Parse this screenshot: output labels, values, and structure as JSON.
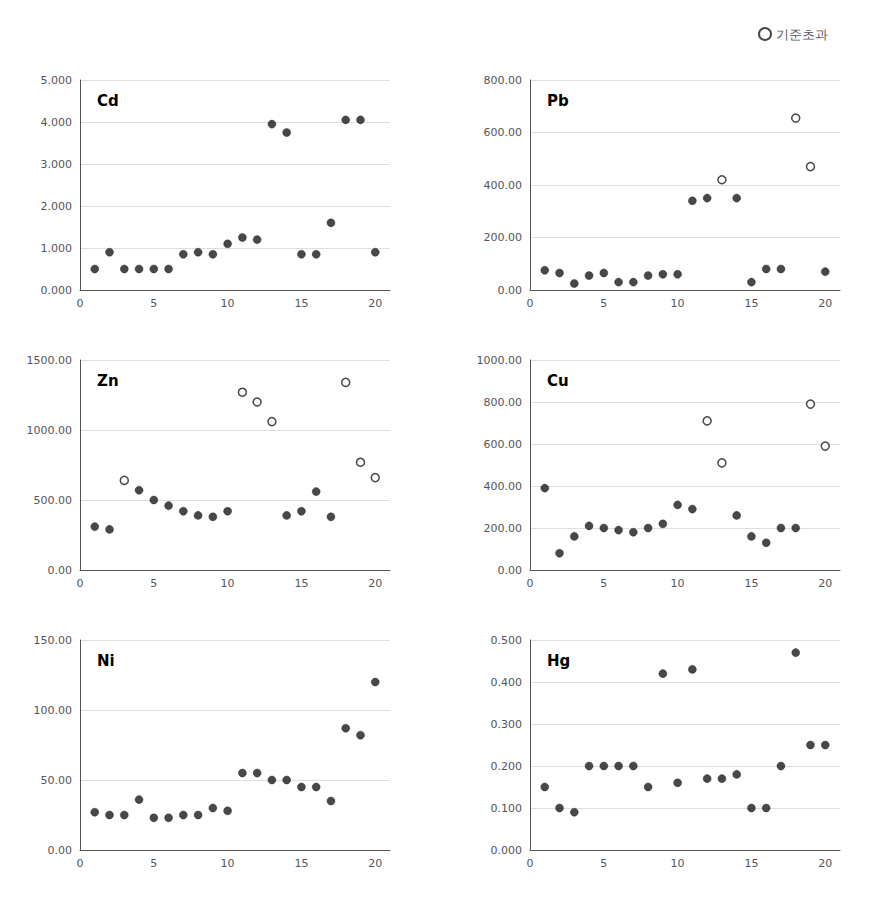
{
  "chart_data": [
    {
      "type": "scatter",
      "title": "Cd",
      "x": [
        1,
        2,
        3,
        4,
        5,
        6,
        7,
        8,
        9,
        10,
        11,
        12,
        13,
        14,
        15,
        16,
        17,
        18,
        19,
        20
      ],
      "series": [
        {
          "color": "#1a1a1a",
          "marker": "circle",
          "values": [
            0.5,
            0.9,
            0.5,
            0.5,
            0.5,
            0.5,
            0.85,
            0.9,
            0.85,
            1.1,
            1.25,
            1.2,
            3.95,
            3.75,
            0.85,
            0.85,
            1.6,
            4.05,
            4.05,
            0.9
          ]
        }
      ],
      "xlim": [
        0,
        21
      ],
      "xticks": [
        0,
        5,
        10,
        15,
        20
      ],
      "ylim": [
        0,
        5.0
      ],
      "yticks": [
        {
          "value": 0.0,
          "label": "0.000"
        },
        {
          "value": 1.0,
          "label": "1.000"
        },
        {
          "value": 2.0,
          "label": "2.000"
        },
        {
          "value": 3.0,
          "label": "3.000"
        },
        {
          "value": 4.0,
          "label": "4.000"
        },
        {
          "value": 5.0,
          "label": "5.000"
        }
      ],
      "grid": true
    },
    {
      "type": "scatter",
      "title": "Pb",
      "x": [
        1,
        2,
        3,
        4,
        5,
        6,
        7,
        8,
        9,
        10,
        11,
        12,
        13,
        14,
        15,
        16,
        17,
        18,
        19,
        20
      ],
      "series": [
        {
          "color": "#1a1a1a",
          "marker": "circle",
          "values": [
            75,
            65,
            25,
            55,
            65,
            30,
            30,
            55,
            60,
            60,
            340,
            350,
            null,
            350,
            30,
            80,
            80,
            null,
            null,
            70
          ]
        },
        {
          "name": "기준초과",
          "color": "#1a1a1a",
          "marker": "open_circle",
          "values": [
            null,
            null,
            null,
            null,
            null,
            null,
            null,
            null,
            null,
            null,
            null,
            null,
            420,
            null,
            null,
            null,
            null,
            655,
            470,
            null
          ]
        }
      ],
      "xlim": [
        0,
        21
      ],
      "xticks": [
        0,
        5,
        10,
        15,
        20
      ],
      "ylim": [
        0,
        800
      ],
      "yticks": [
        {
          "value": 0.0,
          "label": "0.00"
        },
        {
          "value": 200.0,
          "label": "200.00"
        },
        {
          "value": 400.0,
          "label": "400.00"
        },
        {
          "value": 600.0,
          "label": "600.00"
        },
        {
          "value": 800.0,
          "label": "800.00"
        }
      ],
      "grid": true,
      "legend": "upper right"
    },
    {
      "type": "scatter",
      "title": "Zn",
      "x": [
        1,
        2,
        3,
        4,
        5,
        6,
        7,
        8,
        9,
        10,
        11,
        12,
        13,
        14,
        15,
        16,
        17,
        18,
        19,
        20
      ],
      "series": [
        {
          "color": "#1a1a1a",
          "marker": "circle",
          "values": [
            310,
            290,
            null,
            570,
            500,
            460,
            420,
            390,
            380,
            420,
            null,
            null,
            null,
            390,
            420,
            560,
            380,
            null,
            null,
            null
          ]
        },
        {
          "name": "기준초과",
          "color": "#1a1a1a",
          "marker": "open_circle",
          "values": [
            null,
            null,
            640,
            null,
            null,
            null,
            null,
            null,
            null,
            null,
            1270,
            1200,
            1060,
            null,
            null,
            null,
            null,
            1340,
            770,
            660
          ]
        }
      ],
      "xlim": [
        0,
        21
      ],
      "xticks": [
        0,
        5,
        10,
        15,
        20
      ],
      "ylim": [
        0,
        1500
      ],
      "yticks": [
        {
          "value": 0.0,
          "label": "0.00"
        },
        {
          "value": 500.0,
          "label": "500.00"
        },
        {
          "value": 1000.0,
          "label": "1000.00"
        },
        {
          "value": 1500.0,
          "label": "1500.00"
        }
      ],
      "grid": true,
      "legend": "upper right"
    },
    {
      "type": "scatter",
      "title": "Cu",
      "x": [
        1,
        2,
        3,
        4,
        5,
        6,
        7,
        8,
        9,
        10,
        11,
        12,
        13,
        14,
        15,
        16,
        17,
        18,
        19,
        20
      ],
      "series": [
        {
          "color": "#1a1a1a",
          "marker": "circle",
          "values": [
            390,
            80,
            160,
            210,
            200,
            190,
            180,
            200,
            220,
            310,
            290,
            null,
            null,
            260,
            160,
            130,
            200,
            200,
            null,
            null
          ]
        },
        {
          "name": "기준초과",
          "color": "#1a1a1a",
          "marker": "open_circle",
          "values": [
            null,
            null,
            null,
            null,
            null,
            null,
            null,
            null,
            null,
            null,
            null,
            710,
            510,
            null,
            null,
            null,
            null,
            null,
            790,
            590
          ]
        }
      ],
      "xlim": [
        0,
        21
      ],
      "xticks": [
        0,
        5,
        10,
        15,
        20
      ],
      "ylim": [
        0,
        1000
      ],
      "yticks": [
        {
          "value": 0.0,
          "label": "0.00"
        },
        {
          "value": 200.0,
          "label": "200.00"
        },
        {
          "value": 400.0,
          "label": "400.00"
        },
        {
          "value": 600.0,
          "label": "600.00"
        },
        {
          "value": 800.0,
          "label": "800.00"
        },
        {
          "value": 1000.0,
          "label": "1000.00"
        }
      ],
      "grid": true,
      "legend": "upper right"
    },
    {
      "type": "scatter",
      "title": "Ni",
      "x": [
        1,
        2,
        3,
        4,
        5,
        6,
        7,
        8,
        9,
        10,
        11,
        12,
        13,
        14,
        15,
        16,
        17,
        18,
        19,
        20
      ],
      "series": [
        {
          "color": "#1a1a1a",
          "marker": "circle",
          "values": [
            27,
            25,
            25,
            36,
            23,
            23,
            25,
            25,
            30,
            28,
            55,
            55,
            50,
            50,
            45,
            45,
            35,
            87,
            82,
            120
          ]
        }
      ],
      "xlim": [
        0,
        21
      ],
      "xticks": [
        0,
        5,
        10,
        15,
        20
      ],
      "ylim": [
        0,
        150
      ],
      "yticks": [
        {
          "value": 0.0,
          "label": "0.00"
        },
        {
          "value": 50.0,
          "label": "50.00"
        },
        {
          "value": 100.0,
          "label": "100.00"
        },
        {
          "value": 150.0,
          "label": "150.00"
        }
      ],
      "grid": true
    },
    {
      "type": "scatter",
      "title": "Hg",
      "x": [
        1,
        2,
        3,
        4,
        5,
        6,
        7,
        8,
        9,
        10,
        11,
        12,
        13,
        14,
        15,
        16,
        17,
        18,
        19,
        20
      ],
      "series": [
        {
          "color": "#1a1a1a",
          "marker": "circle",
          "values": [
            0.15,
            0.1,
            0.09,
            0.2,
            0.2,
            0.2,
            0.2,
            0.15,
            0.42,
            0.16,
            0.43,
            0.17,
            0.17,
            0.18,
            0.1,
            0.1,
            0.2,
            0.47,
            0.25,
            0.25
          ]
        }
      ],
      "xlim": [
        0,
        21
      ],
      "xticks": [
        0,
        5,
        10,
        15,
        20
      ],
      "ylim": [
        0,
        0.5
      ],
      "yticks": [
        {
          "value": 0.0,
          "label": "0.000"
        },
        {
          "value": 0.1,
          "label": "0.100"
        },
        {
          "value": 0.2,
          "label": "0.200"
        },
        {
          "value": 0.3,
          "label": "0.300"
        },
        {
          "value": 0.4,
          "label": "0.400"
        },
        {
          "value": 0.5,
          "label": "0.500"
        }
      ],
      "grid": true
    }
  ]
}
